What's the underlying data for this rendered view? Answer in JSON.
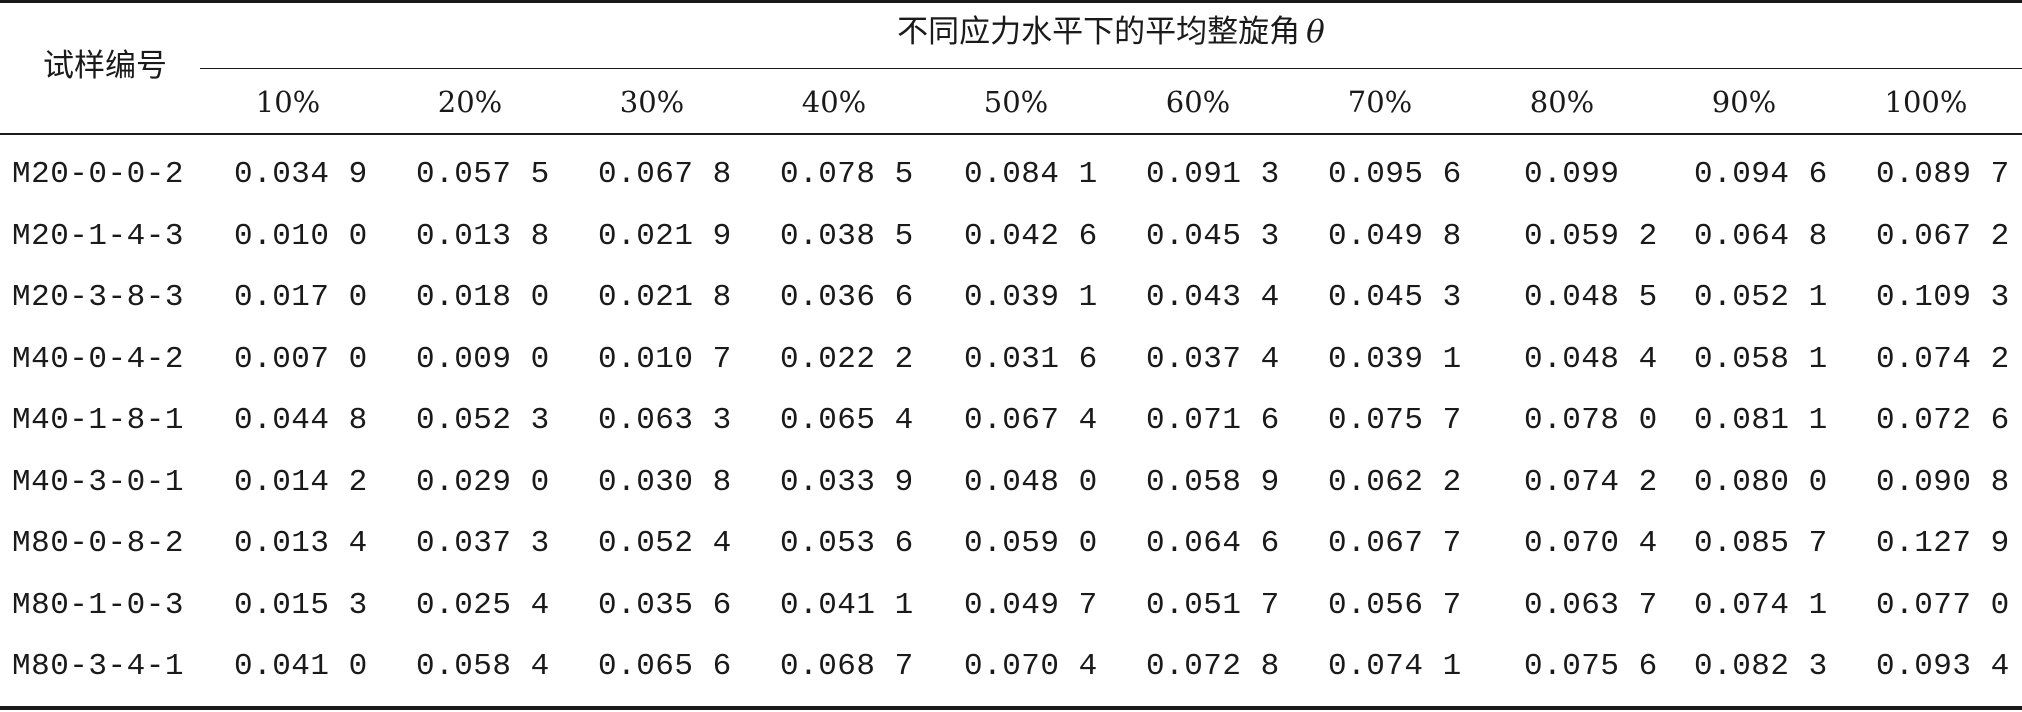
{
  "table": {
    "sample_header": "试样编号",
    "group_header": "不同应力水平下的平均整旋角",
    "group_symbol": "θ",
    "levels": [
      "10%",
      "20%",
      "30%",
      "40%",
      "50%",
      "60%",
      "70%",
      "80%",
      "90%",
      "100%"
    ],
    "rows": [
      {
        "id": "M20-0-0-2",
        "values": [
          "0.034 9",
          "0.057 5",
          "0.067 8",
          "0.078 5",
          "0.084 1",
          "0.091 3",
          "0.095 6",
          "0.099",
          "0.094 6",
          "0.089 7"
        ]
      },
      {
        "id": "M20-1-4-3",
        "values": [
          "0.010 0",
          "0.013 8",
          "0.021 9",
          "0.038 5",
          "0.042 6",
          "0.045 3",
          "0.049 8",
          "0.059 2",
          "0.064 8",
          "0.067 2"
        ]
      },
      {
        "id": "M20-3-8-3",
        "values": [
          "0.017 0",
          "0.018 0",
          "0.021 8",
          "0.036 6",
          "0.039 1",
          "0.043 4",
          "0.045 3",
          "0.048 5",
          "0.052 1",
          "0.109 3"
        ]
      },
      {
        "id": "M40-0-4-2",
        "values": [
          "0.007 0",
          "0.009 0",
          "0.010 7",
          "0.022 2",
          "0.031 6",
          "0.037 4",
          "0.039 1",
          "0.048 4",
          "0.058 1",
          "0.074 2"
        ]
      },
      {
        "id": "M40-1-8-1",
        "values": [
          "0.044 8",
          "0.052 3",
          "0.063 3",
          "0.065 4",
          "0.067 4",
          "0.071 6",
          "0.075 7",
          "0.078 0",
          "0.081 1",
          "0.072 6"
        ]
      },
      {
        "id": "M40-3-0-1",
        "values": [
          "0.014 2",
          "0.029 0",
          "0.030 8",
          "0.033 9",
          "0.048 0",
          "0.058 9",
          "0.062 2",
          "0.074 2",
          "0.080 0",
          "0.090 8"
        ]
      },
      {
        "id": "M80-0-8-2",
        "values": [
          "0.013 4",
          "0.037 3",
          "0.052 4",
          "0.053 6",
          "0.059 0",
          "0.064 6",
          "0.067 7",
          "0.070 4",
          "0.085 7",
          "0.127 9"
        ]
      },
      {
        "id": "M80-1-0-3",
        "values": [
          "0.015 3",
          "0.025 4",
          "0.035 6",
          "0.041 1",
          "0.049 7",
          "0.051 7",
          "0.056 7",
          "0.063 7",
          "0.074 1",
          "0.077 0"
        ]
      },
      {
        "id": "M80-3-4-1",
        "values": [
          "0.041 0",
          "0.058 4",
          "0.065 6",
          "0.068 7",
          "0.070 4",
          "0.072 8",
          "0.074 1",
          "0.075 6",
          "0.082 3",
          "0.093 4"
        ]
      }
    ]
  }
}
